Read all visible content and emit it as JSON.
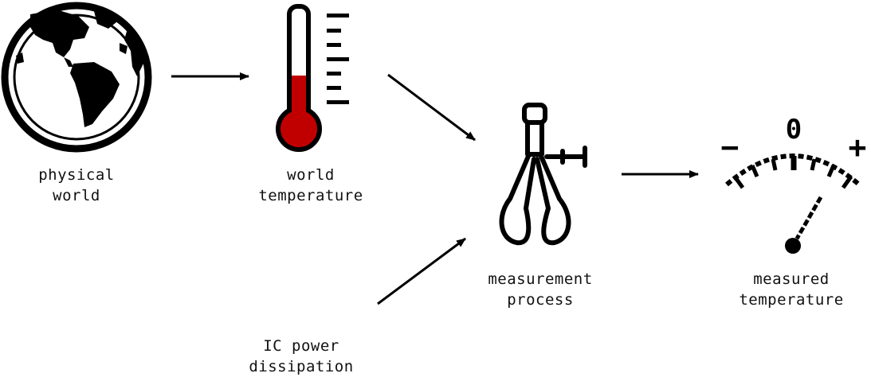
{
  "nodes": {
    "physical_world": {
      "line1": "physical",
      "line2": "world",
      "icon": "globe-icon"
    },
    "world_temperature": {
      "line1": "world",
      "line2": "temperature",
      "icon": "thermometer-icon"
    },
    "measurement_process": {
      "line1": "measurement",
      "line2": "process",
      "icon": "caliper-icon"
    },
    "measured_temperature": {
      "line1": "measured",
      "line2": "temperature",
      "icon": "gauge-icon"
    },
    "ic_power_dissipation": {
      "line1": "IC power",
      "line2": "dissipation"
    }
  },
  "gauge_marks": {
    "zero": "0",
    "minus": "−",
    "plus": "+"
  },
  "colors": {
    "ink": "#000000",
    "mercury": "#c00000",
    "ocean": "#ffffff"
  }
}
